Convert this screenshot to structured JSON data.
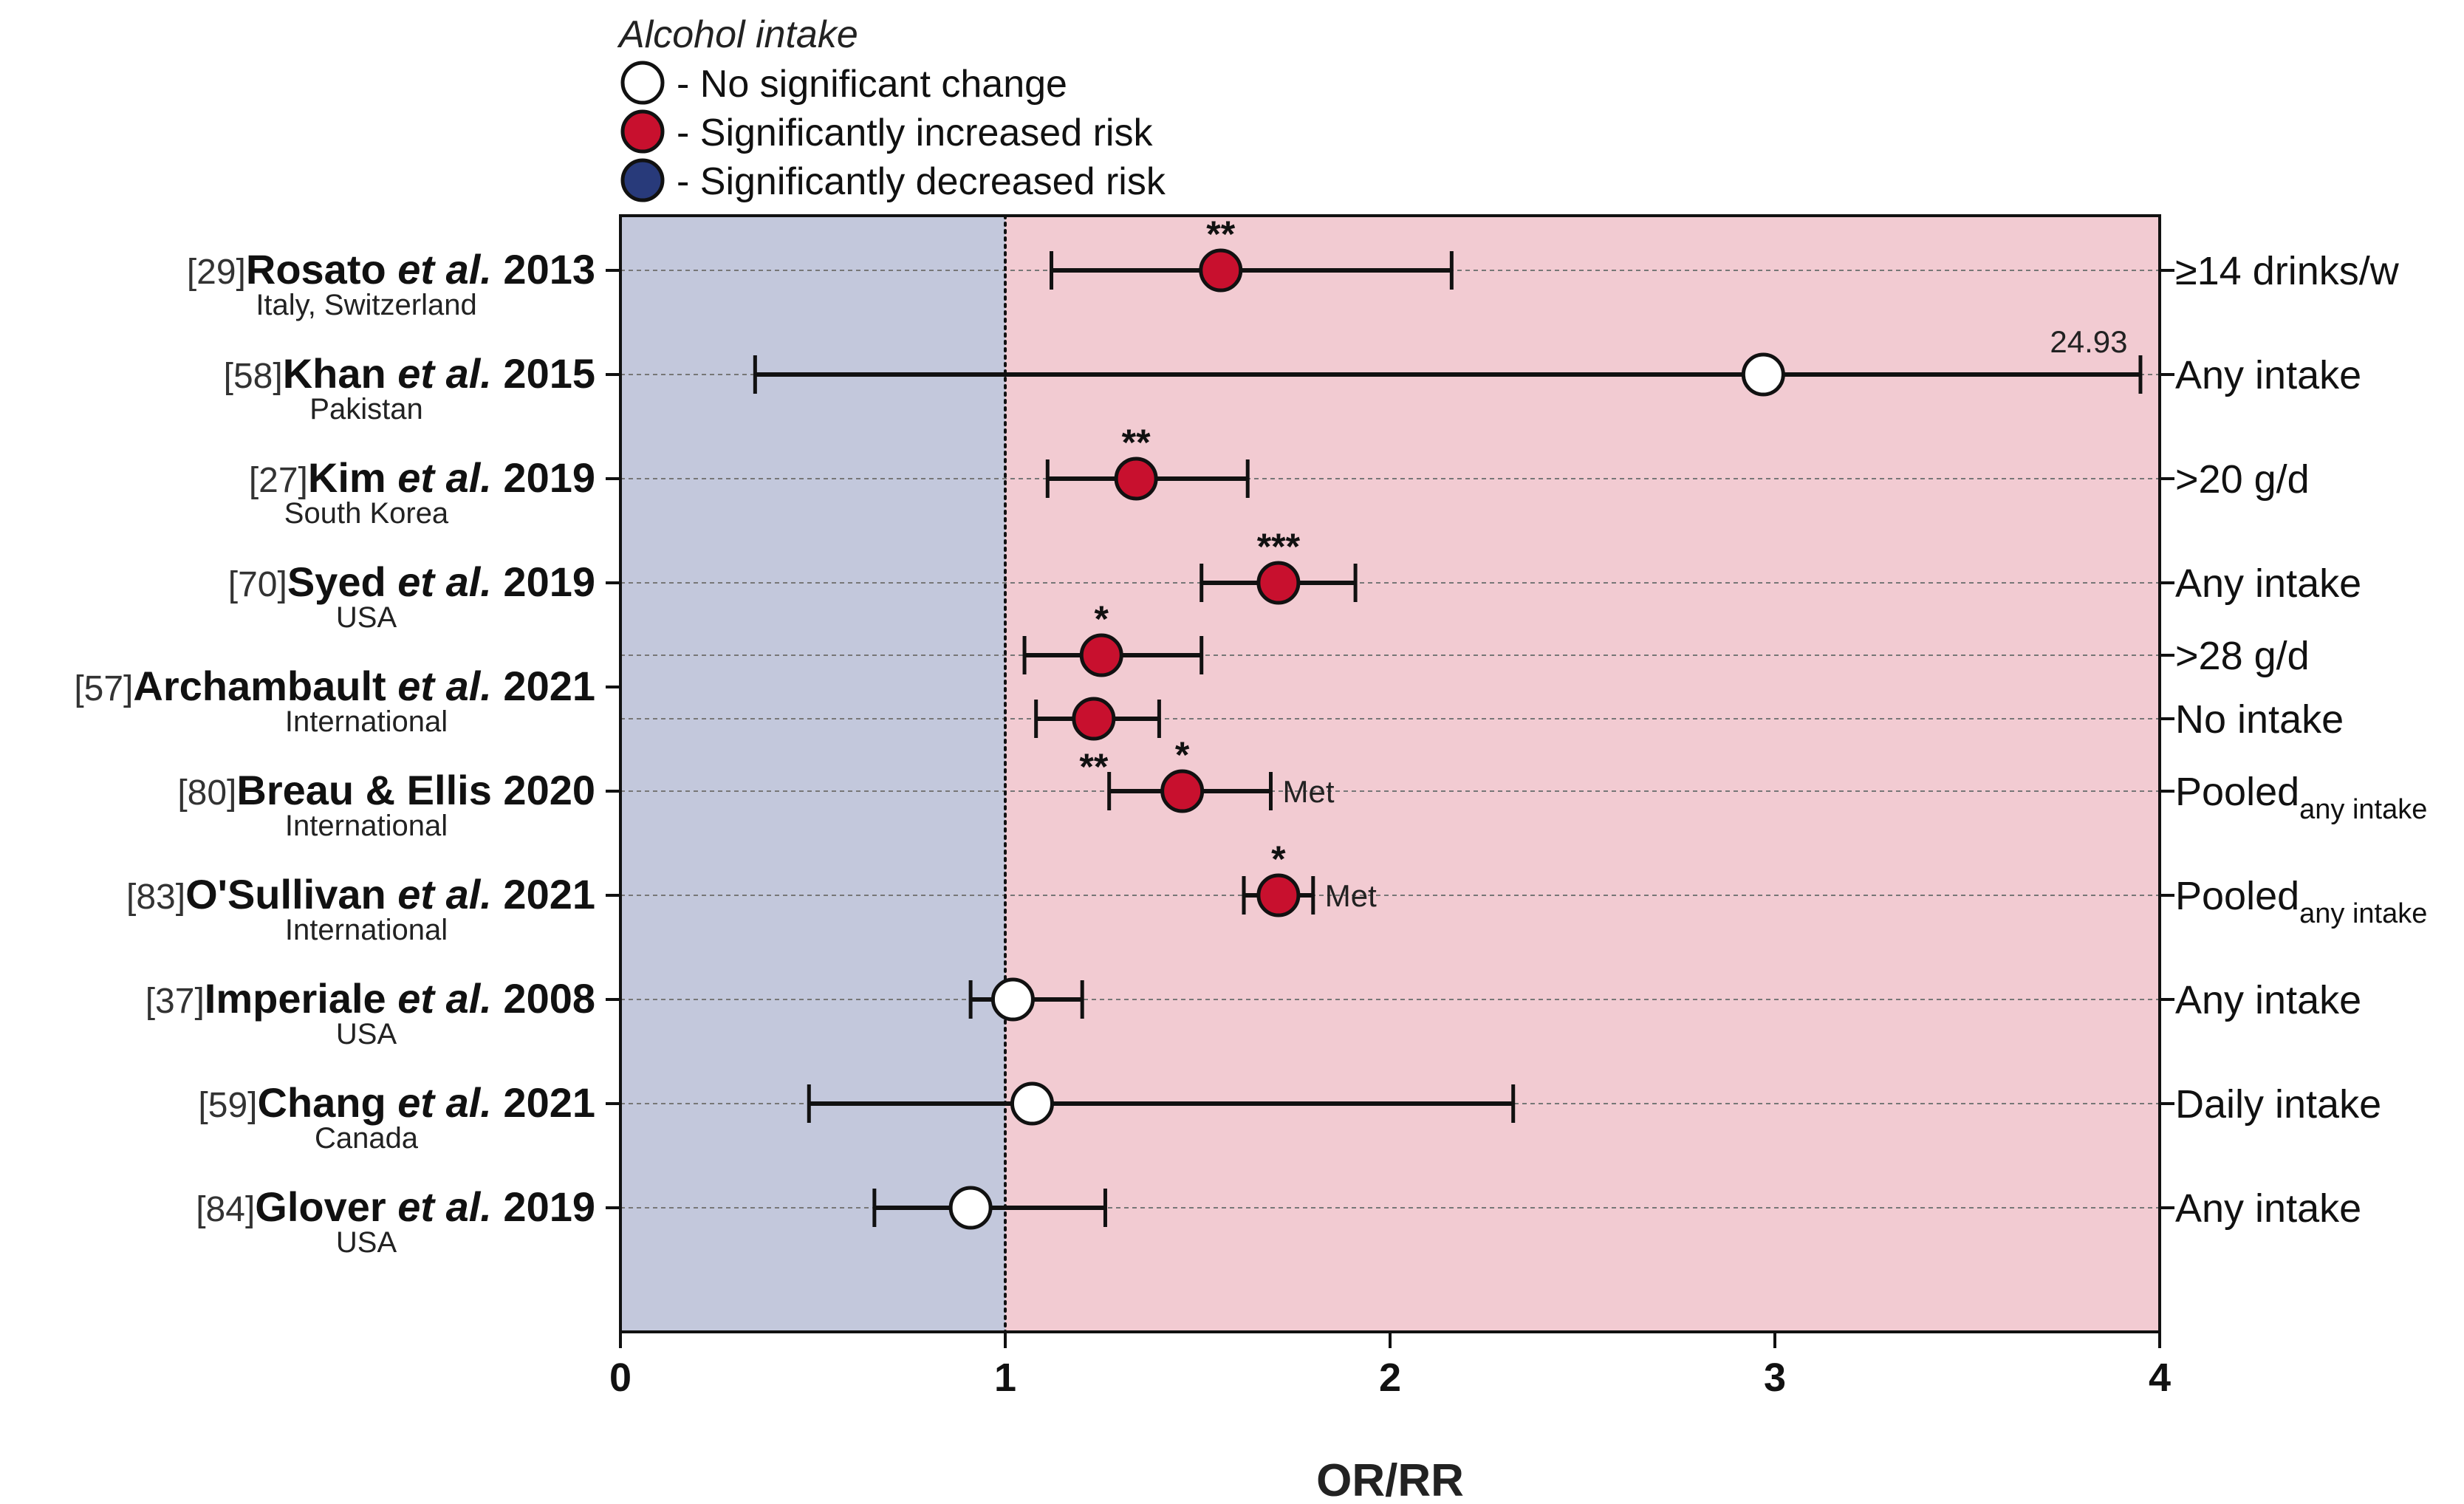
{
  "chart_data": {
    "type": "forest",
    "legend": {
      "title": "Alcohol intake",
      "items": [
        {
          "key": "none",
          "label": "- No significant change",
          "color": "#ffffff"
        },
        {
          "key": "increased",
          "label": "- Significantly increased risk",
          "color": "#c8102e"
        },
        {
          "key": "decreased",
          "label": "- Significantly decreased risk",
          "color": "#283a7a"
        }
      ]
    },
    "xlabel": "OR/RR",
    "xlim": [
      0,
      4
    ],
    "xticks": [
      0,
      1,
      2,
      3,
      4
    ],
    "reference_line": 1,
    "regions": [
      {
        "name": "decreased",
        "from": 0,
        "to": 1,
        "color": "#c3c8dc"
      },
      {
        "name": "increased",
        "from": 1,
        "to": 4,
        "color": "#f2cbd2"
      }
    ],
    "studies": [
      {
        "ref": "[29]",
        "author": "Rosato",
        "etal": true,
        "year": "2013",
        "region": "Italy, Switzerland",
        "rows": [
          {
            "estimate": 1.56,
            "lower": 1.12,
            "upper": 2.16,
            "status": "increased",
            "stars": "**",
            "stars_pos": "above",
            "exposure": "≥14 drinks/w",
            "exposure_sub": "",
            "note": ""
          }
        ]
      },
      {
        "ref": "[58]",
        "author": "Khan",
        "etal": true,
        "year": "2015",
        "region": "Pakistan",
        "rows": [
          {
            "estimate": 2.97,
            "lower": 0.35,
            "upper": 3.95,
            "status": "none",
            "stars": "",
            "stars_pos": "",
            "exposure": "Any intake",
            "exposure_sub": "",
            "note": "",
            "upper_label": "24.93"
          }
        ]
      },
      {
        "ref": "[27]",
        "author": "Kim",
        "etal": true,
        "year": "2019",
        "region": "South Korea",
        "rows": [
          {
            "estimate": 1.34,
            "lower": 1.11,
            "upper": 1.63,
            "status": "increased",
            "stars": "**",
            "stars_pos": "above",
            "exposure": ">20 g/d",
            "exposure_sub": "",
            "note": ""
          }
        ]
      },
      {
        "ref": "[70]",
        "author": "Syed",
        "etal": true,
        "year": "2019",
        "region": "USA",
        "rows": [
          {
            "estimate": 1.71,
            "lower": 1.51,
            "upper": 1.91,
            "status": "increased",
            "stars": "***",
            "stars_pos": "above",
            "exposure": "Any intake",
            "exposure_sub": "",
            "note": ""
          }
        ]
      },
      {
        "ref": "[57]",
        "author": "Archambault",
        "etal": true,
        "year": "2021",
        "region": "International",
        "rows": [
          {
            "estimate": 1.25,
            "lower": 1.05,
            "upper": 1.51,
            "status": "increased",
            "stars": "*",
            "stars_pos": "above",
            "exposure": ">28 g/d",
            "exposure_sub": "",
            "note": ""
          },
          {
            "estimate": 1.23,
            "lower": 1.08,
            "upper": 1.4,
            "status": "increased",
            "stars": "**",
            "stars_pos": "below",
            "exposure": "No intake",
            "exposure_sub": "",
            "note": ""
          }
        ]
      },
      {
        "ref": "[80]",
        "author": "Breau & Ellis",
        "etal": false,
        "year": "2020",
        "region": "International",
        "rows": [
          {
            "estimate": 1.46,
            "lower": 1.27,
            "upper": 1.69,
            "status": "increased",
            "stars": "*",
            "stars_pos": "above",
            "exposure": "Pooled",
            "exposure_sub": "any intake",
            "note": "Met"
          }
        ]
      },
      {
        "ref": "[83]",
        "author": "O'Sullivan",
        "etal": true,
        "year": "2021",
        "region": "International",
        "rows": [
          {
            "estimate": 1.71,
            "lower": 1.62,
            "upper": 1.8,
            "status": "increased",
            "stars": "*",
            "stars_pos": "above",
            "exposure": "Pooled",
            "exposure_sub": "any intake",
            "note": "Met"
          }
        ]
      },
      {
        "ref": "[37]",
        "author": "Imperiale",
        "etal": true,
        "year": "2008",
        "region": "USA",
        "rows": [
          {
            "estimate": 1.02,
            "lower": 0.91,
            "upper": 1.2,
            "status": "none",
            "stars": "",
            "stars_pos": "",
            "exposure": "Any intake",
            "exposure_sub": "",
            "note": ""
          }
        ]
      },
      {
        "ref": "[59]",
        "author": "Chang",
        "etal": true,
        "year": "2021",
        "region": "Canada",
        "rows": [
          {
            "estimate": 1.07,
            "lower": 0.49,
            "upper": 2.32,
            "status": "none",
            "stars": "",
            "stars_pos": "",
            "exposure": "Daily intake",
            "exposure_sub": "",
            "note": ""
          }
        ]
      },
      {
        "ref": "[84]",
        "author": "Glover",
        "etal": true,
        "year": "2019",
        "region": "USA",
        "rows": [
          {
            "estimate": 0.91,
            "lower": 0.66,
            "upper": 1.26,
            "status": "none",
            "stars": "",
            "stars_pos": "",
            "exposure": "Any intake",
            "exposure_sub": "",
            "note": ""
          }
        ]
      }
    ]
  }
}
